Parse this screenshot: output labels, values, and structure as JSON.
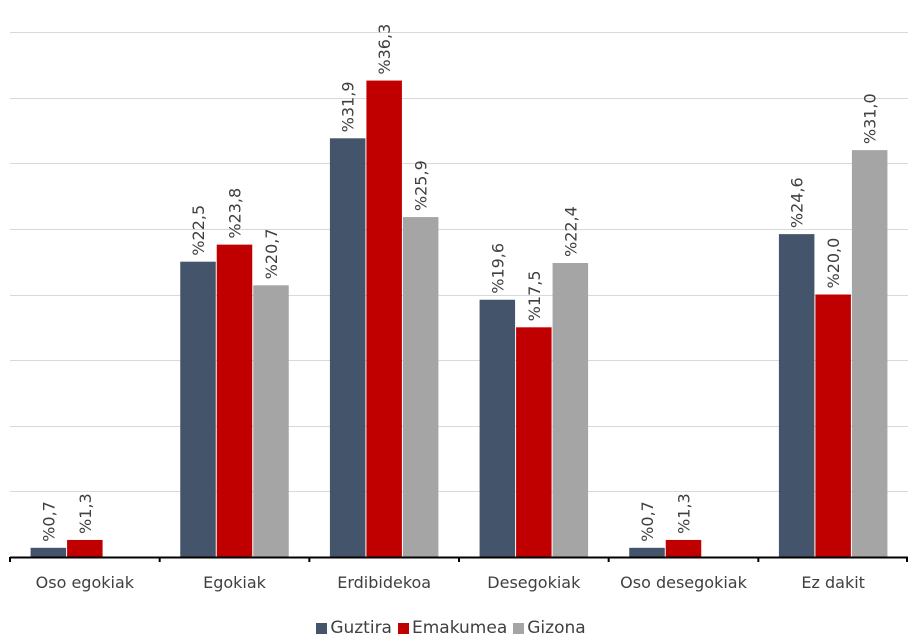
{
  "chart_data": {
    "type": "bar",
    "categories": [
      "Oso egokiak",
      "Egokiak",
      "Erdibidekoa",
      "Desegokiak",
      "Oso desegokiak",
      "Ez dakit"
    ],
    "series": [
      {
        "name": "Guztira",
        "color": "#44546A",
        "values": [
          0.7,
          22.5,
          31.9,
          19.6,
          0.7,
          24.6
        ],
        "labels": [
          "%0,7",
          "%22,5",
          "%31,9",
          "%19,6",
          "%0,7",
          "%24,6"
        ]
      },
      {
        "name": "Emakumea",
        "color": "#C00000",
        "values": [
          1.3,
          23.8,
          36.3,
          17.5,
          1.3,
          20.0
        ],
        "labels": [
          "%1,3",
          "%23,8",
          "%36,3",
          "%17,5",
          "%1,3",
          "%20,0"
        ]
      },
      {
        "name": "Gizona",
        "color": "#A5A5A5",
        "values": [
          0,
          20.7,
          25.9,
          22.4,
          0,
          31.0
        ],
        "labels": [
          "",
          "%20,7",
          "%25,9",
          "%22,4",
          "",
          "%31,0"
        ]
      }
    ],
    "ylim": [
      0,
      40
    ],
    "gridlines": true,
    "legend_position": "bottom"
  }
}
